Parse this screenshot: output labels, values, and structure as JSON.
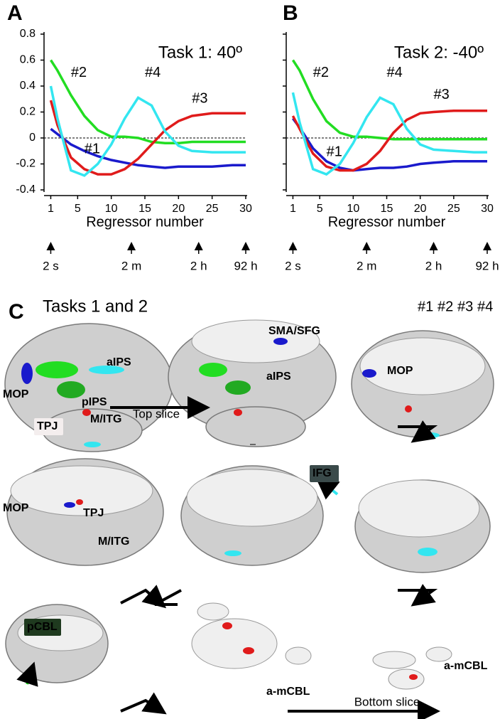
{
  "chart_data": [
    {
      "type": "line",
      "panel": "A",
      "title": "Task 1: 40º",
      "xlabel": "Regressor number",
      "x": [
        1,
        2,
        4,
        6,
        8,
        10,
        12,
        14,
        16,
        18,
        20,
        22,
        25,
        28,
        30
      ],
      "xlim": [
        0,
        30
      ],
      "xticks": [
        1,
        5,
        10,
        15,
        20,
        25,
        30
      ],
      "ylim": [
        -0.4,
        0.8
      ],
      "yticks": [
        -0.4,
        -0.2,
        0,
        0.2,
        0.4,
        0.6,
        0.8
      ],
      "zero_line": true,
      "series": [
        {
          "name": "#1",
          "color": "#1a1acc",
          "values": [
            0.07,
            0.03,
            -0.05,
            -0.1,
            -0.14,
            -0.17,
            -0.19,
            -0.21,
            -0.22,
            -0.23,
            -0.22,
            -0.22,
            -0.22,
            -0.21,
            -0.21
          ]
        },
        {
          "name": "#2",
          "color": "#22dd22",
          "values": [
            0.6,
            0.52,
            0.33,
            0.17,
            0.06,
            0.01,
            0.01,
            0,
            -0.03,
            -0.04,
            -0.04,
            -0.03,
            -0.03,
            -0.03,
            -0.03
          ]
        },
        {
          "name": "#3",
          "color": "#e01b1b",
          "values": [
            0.29,
            0.1,
            -0.15,
            -0.24,
            -0.28,
            -0.28,
            -0.24,
            -0.16,
            -0.05,
            0.06,
            0.13,
            0.17,
            0.19,
            0.19,
            0.19
          ]
        },
        {
          "name": "#4",
          "color": "#33e6f0",
          "values": [
            0.4,
            0.15,
            -0.25,
            -0.29,
            -0.2,
            -0.05,
            0.15,
            0.31,
            0.25,
            0.05,
            -0.06,
            -0.1,
            -0.11,
            -0.11,
            -0.11
          ]
        }
      ],
      "time_markers": {
        "labels": [
          "2 s",
          "2 m",
          "2 h",
          "92 h"
        ],
        "x": [
          1,
          13,
          23,
          30
        ]
      }
    },
    {
      "type": "line",
      "panel": "B",
      "title": "Task 2: -40º",
      "xlabel": "Regressor number",
      "x": [
        1,
        2,
        4,
        6,
        8,
        10,
        12,
        14,
        16,
        18,
        20,
        22,
        25,
        28,
        30
      ],
      "xlim": [
        0,
        30
      ],
      "xticks": [
        1,
        5,
        10,
        15,
        20,
        25,
        30
      ],
      "ylim": [
        -0.4,
        0.8
      ],
      "yticks": [
        -0.4,
        -0.2,
        0,
        0.2,
        0.4,
        0.6,
        0.8
      ],
      "zero_line": true,
      "series": [
        {
          "name": "#1",
          "color": "#1a1acc",
          "values": [
            0.15,
            0.08,
            -0.08,
            -0.18,
            -0.23,
            -0.25,
            -0.24,
            -0.23,
            -0.23,
            -0.22,
            -0.2,
            -0.19,
            -0.18,
            -0.18,
            -0.18
          ]
        },
        {
          "name": "#2",
          "color": "#22dd22",
          "values": [
            0.6,
            0.52,
            0.3,
            0.13,
            0.04,
            0.01,
            0.01,
            0,
            -0.01,
            -0.01,
            -0.01,
            -0.01,
            -0.01,
            -0.01,
            -0.01
          ]
        },
        {
          "name": "#3",
          "color": "#e01b1b",
          "values": [
            0.17,
            0.07,
            -0.12,
            -0.22,
            -0.25,
            -0.25,
            -0.2,
            -0.1,
            0.04,
            0.14,
            0.19,
            0.2,
            0.21,
            0.21,
            0.21
          ]
        },
        {
          "name": "#4",
          "color": "#33e6f0",
          "values": [
            0.35,
            0.12,
            -0.24,
            -0.28,
            -0.2,
            -0.04,
            0.16,
            0.31,
            0.26,
            0.07,
            -0.05,
            -0.09,
            -0.1,
            -0.11,
            -0.11
          ]
        }
      ],
      "time_markers": {
        "labels": [
          "2 s",
          "2 m",
          "2 h",
          "92 h"
        ],
        "x": [
          1,
          12,
          22,
          30
        ]
      }
    }
  ],
  "panel_c": {
    "letter": "C",
    "title": "Tasks 1 and 2",
    "legend": [
      {
        "name": "#1",
        "color": "#1a1acc"
      },
      {
        "name": "#2",
        "color": "#22dd22"
      },
      {
        "name": "#3",
        "color": "#e01b1b"
      },
      {
        "name": "#4",
        "color": "#33e6f0"
      }
    ],
    "labels": [
      {
        "text": "MOP",
        "color": "#1a1acc"
      },
      {
        "text": "TPJ",
        "color": "#e01b1b"
      },
      {
        "text": "aIPS",
        "color": "#33e6f0"
      },
      {
        "text": "pIPS",
        "color": "#22dd22"
      },
      {
        "text": "M/ITG",
        "color": "#33e6f0"
      },
      {
        "text": "SMA/SFG",
        "color": "#1a1acc"
      },
      {
        "text": "aIPS",
        "color": "#33e6f0"
      },
      {
        "text": "MOP",
        "color": "#1a1acc"
      },
      {
        "text": "MOP",
        "color": "#1a1acc"
      },
      {
        "text": "TPJ",
        "color": "#e01b1b"
      },
      {
        "text": "M/ITG",
        "color": "#33e6f0"
      },
      {
        "text": "IFG",
        "color": "#33e6f0"
      },
      {
        "text": "pCBL",
        "color": "#22dd22"
      },
      {
        "text": "a-mCBL",
        "color": "#e01b1b"
      },
      {
        "text": "a-mCBL",
        "color": "#e01b1b"
      }
    ],
    "top_arrow": "Top slice",
    "bottom_arrow": "Bottom slice"
  }
}
